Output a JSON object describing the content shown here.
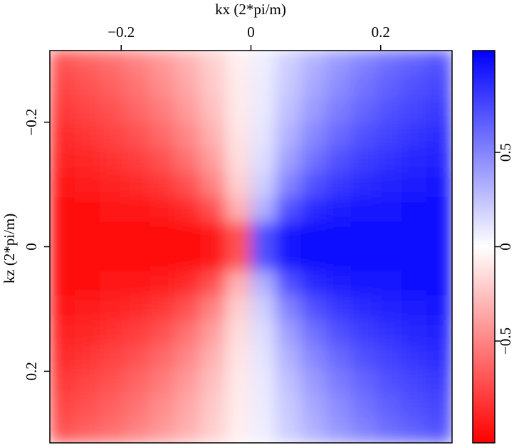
{
  "chart_data": {
    "type": "heatmap",
    "xlabel": "kx (2*pi/m)",
    "ylabel": "kz (2*pi/m)",
    "xlim": [
      -0.31,
      0.31
    ],
    "ylim": [
      -0.315,
      0.315
    ],
    "xticks": [
      {
        "value": -0.2,
        "label": "−0.2"
      },
      0,
      0.2
    ],
    "yticks": [
      {
        "value": -0.2,
        "label": "−0.2"
      },
      0,
      0.2
    ],
    "colors": [
      "#ff0000",
      "#ffffff",
      "#0000ff"
    ],
    "clim": [
      -1.04,
      1.04
    ],
    "cticks": [
      {
        "value": -0.5,
        "label": "−0.5"
      },
      0,
      0.5
    ],
    "z": [
      [
        -0.71,
        -0.65,
        -0.59,
        -0.51,
        -0.42,
        -0.32,
        -0.2,
        -0.07,
        0.07,
        0.2,
        0.32,
        0.42,
        0.51,
        0.59,
        0.65,
        0.71
      ],
      [
        -0.76,
        -0.71,
        -0.65,
        -0.57,
        -0.47,
        -0.36,
        -0.22,
        -0.08,
        0.08,
        0.22,
        0.36,
        0.47,
        0.57,
        0.65,
        0.71,
        0.76
      ],
      [
        -0.81,
        -0.76,
        -0.71,
        -0.63,
        -0.54,
        -0.41,
        -0.26,
        -0.09,
        0.09,
        0.26,
        0.41,
        0.54,
        0.63,
        0.71,
        0.76,
        0.81
      ],
      [
        -0.86,
        -0.82,
        -0.77,
        -0.71,
        -0.61,
        -0.49,
        -0.32,
        -0.11,
        0.11,
        0.32,
        0.49,
        0.61,
        0.71,
        0.77,
        0.82,
        0.86
      ],
      [
        -0.91,
        -0.88,
        -0.84,
        -0.79,
        -0.71,
        -0.58,
        -0.39,
        -0.14,
        0.14,
        0.39,
        0.58,
        0.71,
        0.79,
        0.84,
        0.88,
        0.91
      ],
      [
        -0.95,
        -0.93,
        -0.91,
        -0.87,
        -0.81,
        -0.71,
        -0.51,
        -0.2,
        0.2,
        0.51,
        0.71,
        0.81,
        0.87,
        0.91,
        0.93,
        0.95
      ],
      [
        -0.98,
        -0.97,
        -0.96,
        -0.95,
        -0.92,
        -0.86,
        -0.71,
        -0.32,
        0.32,
        0.71,
        0.86,
        0.92,
        0.95,
        0.96,
        0.97,
        0.98
      ],
      [
        -1,
        -1,
        -1,
        -0.99,
        -0.99,
        -0.98,
        -0.95,
        -0.71,
        0.71,
        0.95,
        0.98,
        0.99,
        0.99,
        1,
        1,
        1
      ],
      [
        -1,
        -1,
        -1,
        -0.99,
        -0.99,
        -0.98,
        -0.95,
        -0.71,
        0.71,
        0.95,
        0.98,
        0.99,
        0.99,
        1,
        1,
        1
      ],
      [
        -0.98,
        -0.97,
        -0.96,
        -0.95,
        -0.92,
        -0.86,
        -0.71,
        -0.32,
        0.32,
        0.71,
        0.86,
        0.92,
        0.95,
        0.96,
        0.97,
        0.98
      ],
      [
        -0.95,
        -0.93,
        -0.91,
        -0.87,
        -0.81,
        -0.71,
        -0.51,
        -0.2,
        0.2,
        0.51,
        0.71,
        0.81,
        0.87,
        0.91,
        0.93,
        0.95
      ],
      [
        -0.91,
        -0.88,
        -0.84,
        -0.79,
        -0.71,
        -0.58,
        -0.39,
        -0.14,
        0.14,
        0.39,
        0.58,
        0.71,
        0.79,
        0.84,
        0.88,
        0.91
      ],
      [
        -0.86,
        -0.82,
        -0.77,
        -0.71,
        -0.61,
        -0.49,
        -0.32,
        -0.11,
        0.11,
        0.32,
        0.49,
        0.61,
        0.71,
        0.77,
        0.82,
        0.86
      ],
      [
        -0.81,
        -0.76,
        -0.71,
        -0.63,
        -0.54,
        -0.41,
        -0.26,
        -0.09,
        0.09,
        0.26,
        0.41,
        0.54,
        0.63,
        0.71,
        0.76,
        0.81
      ],
      [
        -0.76,
        -0.71,
        -0.65,
        -0.57,
        -0.47,
        -0.36,
        -0.22,
        -0.08,
        0.08,
        0.22,
        0.36,
        0.47,
        0.57,
        0.65,
        0.71,
        0.76
      ],
      [
        -0.71,
        -0.65,
        -0.59,
        -0.51,
        -0.42,
        -0.32,
        -0.2,
        -0.07,
        0.07,
        0.2,
        0.32,
        0.42,
        0.51,
        0.59,
        0.65,
        0.71
      ]
    ]
  }
}
